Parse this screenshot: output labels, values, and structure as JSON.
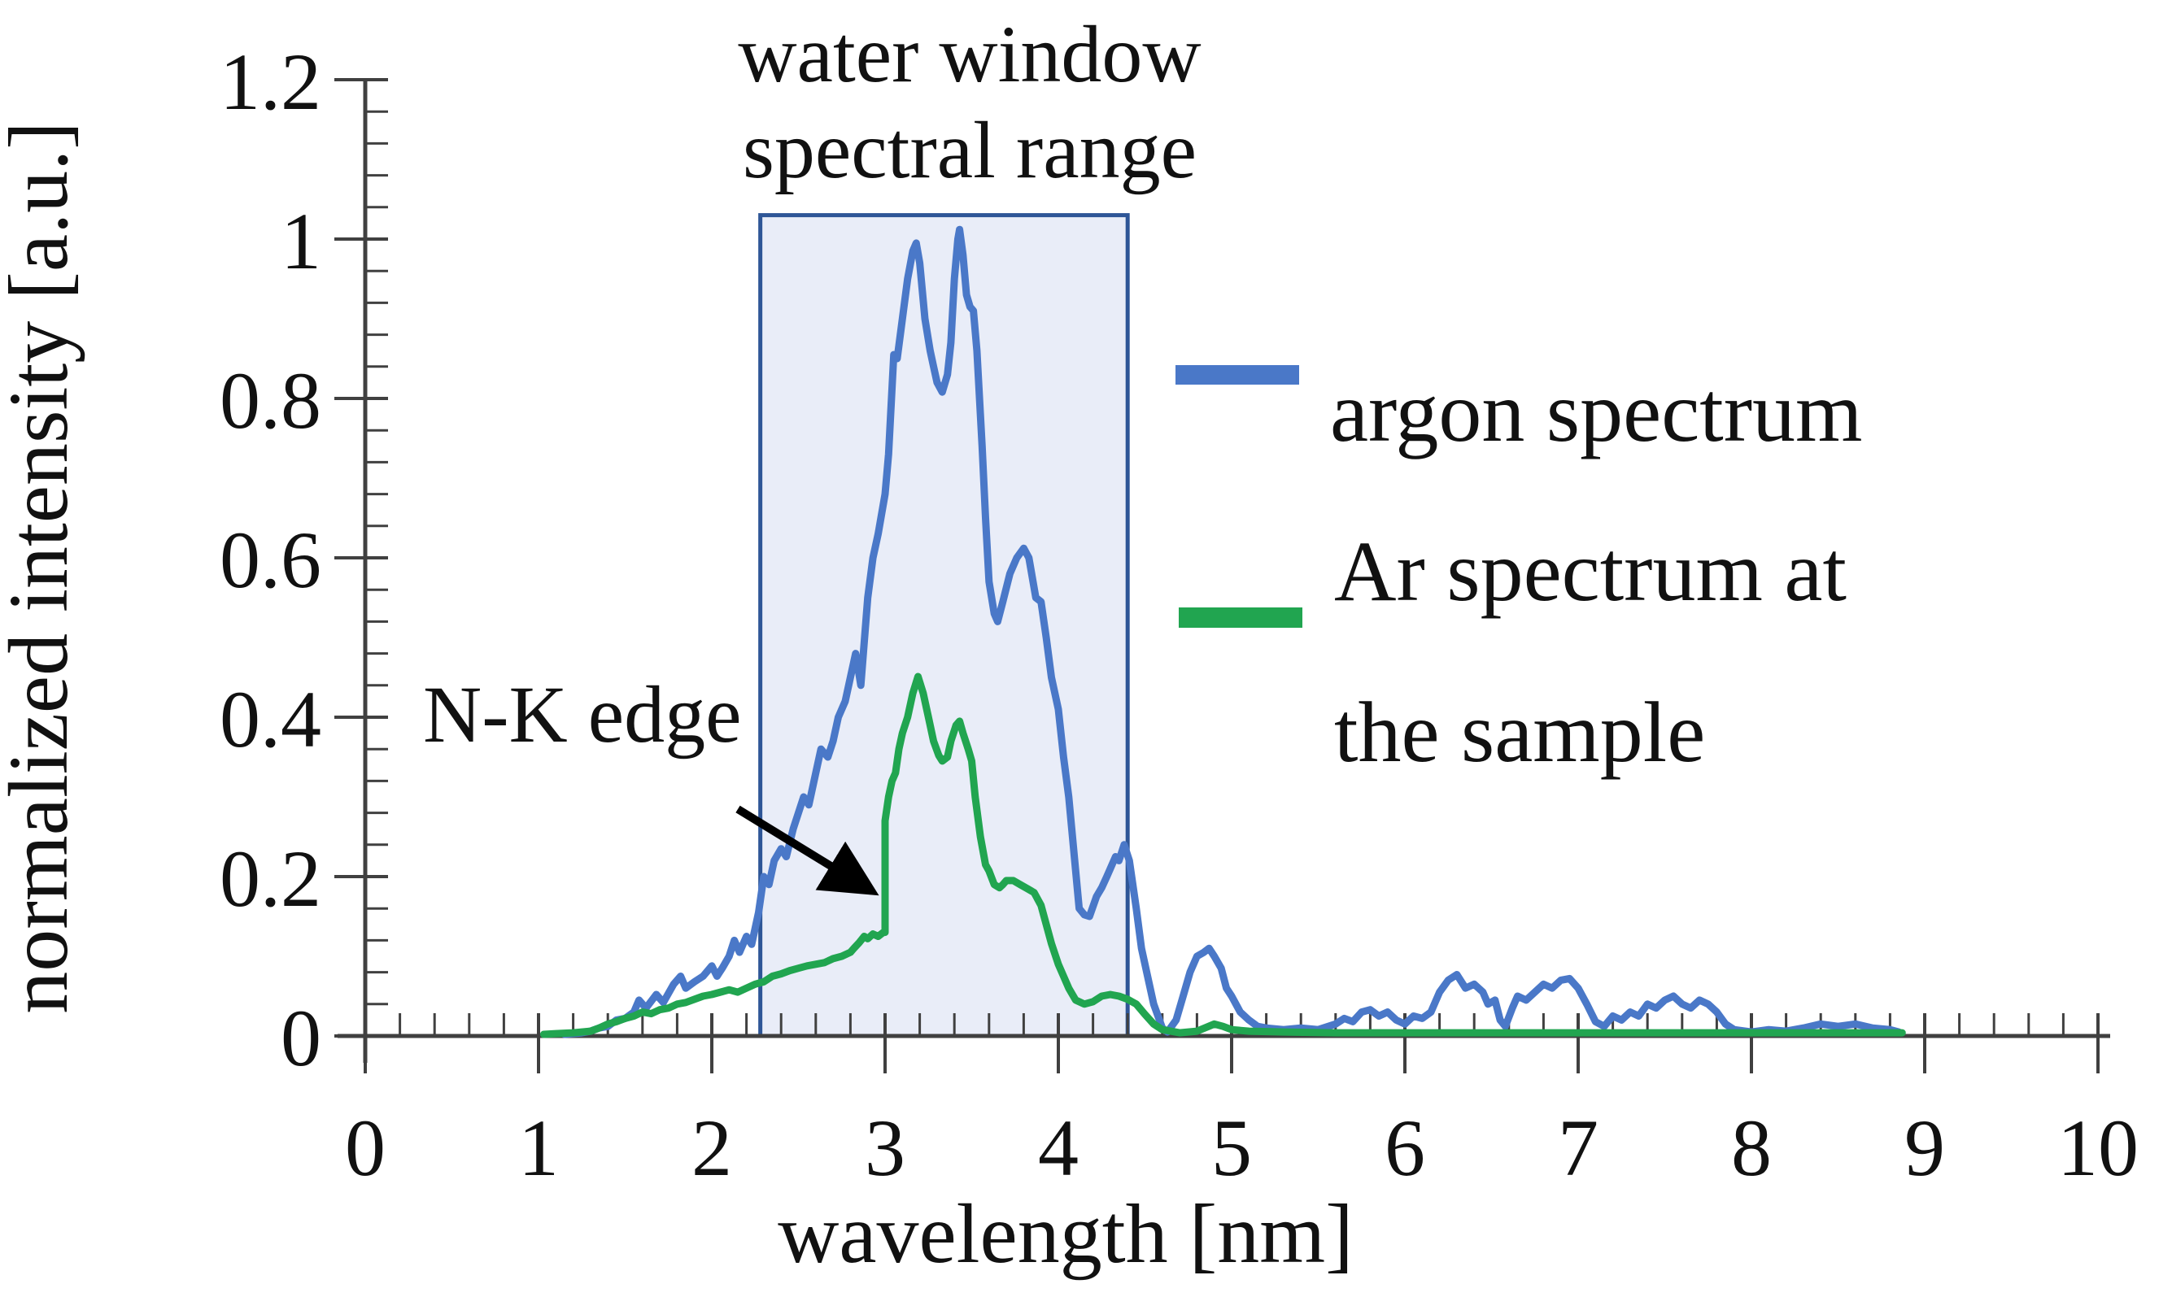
{
  "figure": {
    "title_line1": "water window",
    "title_line2": "spectral range",
    "annotation": "N-K edge",
    "xlabel": "wavelength [nm]",
    "ylabel": "normalized intensity [a.u.]"
  },
  "legend": {
    "series1_label": "argon spectrum",
    "series2_label_line1": "Ar spectrum at",
    "series2_label_line2": "the sample"
  },
  "colors": {
    "argon_line": "#4a78c8",
    "sample_line": "#21a550",
    "box_fill": "#e9edf8",
    "box_border": "#2e5697",
    "axis": "#404040",
    "text": "#111111",
    "arrow": "#000000"
  },
  "chart_data": {
    "type": "line",
    "title": "water window spectral range",
    "xlabel": "wavelength [nm]",
    "ylabel": "normalized intensity [a.u.]",
    "xlim": [
      0,
      10
    ],
    "ylim": [
      0,
      1.2
    ],
    "x_ticks": [
      0,
      1,
      2,
      3,
      4,
      5,
      6,
      7,
      8,
      9,
      10
    ],
    "y_ticks": [
      0,
      0.2,
      0.4,
      0.6,
      0.8,
      1,
      1.2
    ],
    "y_tick_labels": [
      "0",
      "0.2",
      "0.4",
      "0.6",
      "0.8",
      "1",
      "1.2"
    ],
    "x_minor_step": 0.2,
    "y_minor_step": 0.04,
    "grid": false,
    "legend_position": "right",
    "water_window_band": {
      "x_start_nm": 2.28,
      "x_end_nm": 4.4,
      "y_top": 1.03,
      "label": "water window spectral range"
    },
    "annotations": [
      {
        "text": "N-K edge",
        "points_to_nm": 3.0,
        "points_to_intensity": 0.18
      }
    ],
    "series": [
      {
        "name": "argon spectrum",
        "color": "#4a78c8",
        "points": [
          [
            1.15,
            0.002
          ],
          [
            1.25,
            0.004
          ],
          [
            1.3,
            0.006
          ],
          [
            1.35,
            0.01
          ],
          [
            1.4,
            0.012
          ],
          [
            1.45,
            0.02
          ],
          [
            1.5,
            0.022
          ],
          [
            1.55,
            0.03
          ],
          [
            1.58,
            0.045
          ],
          [
            1.62,
            0.035
          ],
          [
            1.68,
            0.052
          ],
          [
            1.72,
            0.042
          ],
          [
            1.78,
            0.065
          ],
          [
            1.82,
            0.075
          ],
          [
            1.85,
            0.06
          ],
          [
            1.9,
            0.068
          ],
          [
            1.95,
            0.075
          ],
          [
            2.0,
            0.088
          ],
          [
            2.03,
            0.075
          ],
          [
            2.06,
            0.085
          ],
          [
            2.1,
            0.1
          ],
          [
            2.13,
            0.12
          ],
          [
            2.16,
            0.105
          ],
          [
            2.2,
            0.125
          ],
          [
            2.23,
            0.115
          ],
          [
            2.27,
            0.155
          ],
          [
            2.3,
            0.2
          ],
          [
            2.33,
            0.19
          ],
          [
            2.36,
            0.22
          ],
          [
            2.4,
            0.235
          ],
          [
            2.43,
            0.225
          ],
          [
            2.47,
            0.26
          ],
          [
            2.5,
            0.28
          ],
          [
            2.53,
            0.3
          ],
          [
            2.56,
            0.29
          ],
          [
            2.6,
            0.33
          ],
          [
            2.63,
            0.36
          ],
          [
            2.67,
            0.35
          ],
          [
            2.7,
            0.37
          ],
          [
            2.73,
            0.4
          ],
          [
            2.77,
            0.42
          ],
          [
            2.8,
            0.45
          ],
          [
            2.83,
            0.48
          ],
          [
            2.86,
            0.44
          ],
          [
            2.9,
            0.55
          ],
          [
            2.93,
            0.6
          ],
          [
            2.96,
            0.63
          ],
          [
            3.0,
            0.68
          ],
          [
            3.02,
            0.73
          ],
          [
            3.05,
            0.855
          ],
          [
            3.07,
            0.85
          ],
          [
            3.1,
            0.9
          ],
          [
            3.13,
            0.95
          ],
          [
            3.16,
            0.985
          ],
          [
            3.18,
            0.995
          ],
          [
            3.2,
            0.97
          ],
          [
            3.23,
            0.9
          ],
          [
            3.26,
            0.86
          ],
          [
            3.28,
            0.84
          ],
          [
            3.3,
            0.82
          ],
          [
            3.33,
            0.808
          ],
          [
            3.36,
            0.83
          ],
          [
            3.38,
            0.87
          ],
          [
            3.4,
            0.95
          ],
          [
            3.42,
            1.0
          ],
          [
            3.43,
            1.012
          ],
          [
            3.45,
            0.98
          ],
          [
            3.47,
            0.93
          ],
          [
            3.49,
            0.915
          ],
          [
            3.51,
            0.91
          ],
          [
            3.53,
            0.86
          ],
          [
            3.56,
            0.74
          ],
          [
            3.58,
            0.65
          ],
          [
            3.6,
            0.57
          ],
          [
            3.63,
            0.53
          ],
          [
            3.65,
            0.52
          ],
          [
            3.68,
            0.545
          ],
          [
            3.72,
            0.58
          ],
          [
            3.76,
            0.6
          ],
          [
            3.8,
            0.612
          ],
          [
            3.83,
            0.6
          ],
          [
            3.87,
            0.55
          ],
          [
            3.9,
            0.545
          ],
          [
            3.93,
            0.5
          ],
          [
            3.96,
            0.45
          ],
          [
            4.0,
            0.41
          ],
          [
            4.03,
            0.35
          ],
          [
            4.06,
            0.3
          ],
          [
            4.09,
            0.23
          ],
          [
            4.12,
            0.16
          ],
          [
            4.15,
            0.152
          ],
          [
            4.18,
            0.15
          ],
          [
            4.22,
            0.175
          ],
          [
            4.25,
            0.186
          ],
          [
            4.28,
            0.2
          ],
          [
            4.3,
            0.21
          ],
          [
            4.33,
            0.225
          ],
          [
            4.35,
            0.22
          ],
          [
            4.38,
            0.24
          ],
          [
            4.41,
            0.22
          ],
          [
            4.45,
            0.16
          ],
          [
            4.48,
            0.11
          ],
          [
            4.51,
            0.08
          ],
          [
            4.55,
            0.04
          ],
          [
            4.6,
            0.01
          ],
          [
            4.63,
            0.005
          ],
          [
            4.68,
            0.02
          ],
          [
            4.72,
            0.05
          ],
          [
            4.76,
            0.08
          ],
          [
            4.8,
            0.1
          ],
          [
            4.84,
            0.105
          ],
          [
            4.87,
            0.11
          ],
          [
            4.9,
            0.1
          ],
          [
            4.94,
            0.085
          ],
          [
            4.97,
            0.06
          ],
          [
            5.0,
            0.05
          ],
          [
            5.05,
            0.03
          ],
          [
            5.1,
            0.02
          ],
          [
            5.15,
            0.012
          ],
          [
            5.2,
            0.01
          ],
          [
            5.3,
            0.008
          ],
          [
            5.4,
            0.01
          ],
          [
            5.5,
            0.008
          ],
          [
            5.6,
            0.015
          ],
          [
            5.65,
            0.022
          ],
          [
            5.7,
            0.018
          ],
          [
            5.75,
            0.03
          ],
          [
            5.8,
            0.033
          ],
          [
            5.85,
            0.025
          ],
          [
            5.9,
            0.03
          ],
          [
            5.95,
            0.02
          ],
          [
            6.0,
            0.015
          ],
          [
            6.05,
            0.025
          ],
          [
            6.1,
            0.022
          ],
          [
            6.15,
            0.03
          ],
          [
            6.2,
            0.055
          ],
          [
            6.25,
            0.07
          ],
          [
            6.3,
            0.077
          ],
          [
            6.35,
            0.06
          ],
          [
            6.4,
            0.065
          ],
          [
            6.45,
            0.055
          ],
          [
            6.48,
            0.04
          ],
          [
            6.52,
            0.045
          ],
          [
            6.55,
            0.02
          ],
          [
            6.58,
            0.012
          ],
          [
            6.62,
            0.035
          ],
          [
            6.65,
            0.05
          ],
          [
            6.7,
            0.045
          ],
          [
            6.75,
            0.055
          ],
          [
            6.8,
            0.065
          ],
          [
            6.85,
            0.06
          ],
          [
            6.9,
            0.07
          ],
          [
            6.95,
            0.072
          ],
          [
            7.0,
            0.06
          ],
          [
            7.05,
            0.04
          ],
          [
            7.1,
            0.018
          ],
          [
            7.15,
            0.012
          ],
          [
            7.2,
            0.025
          ],
          [
            7.25,
            0.02
          ],
          [
            7.3,
            0.03
          ],
          [
            7.35,
            0.025
          ],
          [
            7.4,
            0.04
          ],
          [
            7.45,
            0.035
          ],
          [
            7.5,
            0.045
          ],
          [
            7.55,
            0.05
          ],
          [
            7.6,
            0.04
          ],
          [
            7.65,
            0.035
          ],
          [
            7.7,
            0.045
          ],
          [
            7.75,
            0.04
          ],
          [
            7.8,
            0.03
          ],
          [
            7.85,
            0.015
          ],
          [
            7.9,
            0.008
          ],
          [
            8.0,
            0.005
          ],
          [
            8.1,
            0.008
          ],
          [
            8.2,
            0.006
          ],
          [
            8.3,
            0.01
          ],
          [
            8.4,
            0.015
          ],
          [
            8.5,
            0.012
          ],
          [
            8.6,
            0.015
          ],
          [
            8.7,
            0.01
          ],
          [
            8.8,
            0.008
          ],
          [
            8.85,
            0.005
          ]
        ]
      },
      {
        "name": "Ar spectrum at the sample",
        "color": "#21a550",
        "points": [
          [
            1.03,
            0.002
          ],
          [
            1.1,
            0.003
          ],
          [
            1.2,
            0.004
          ],
          [
            1.3,
            0.006
          ],
          [
            1.35,
            0.01
          ],
          [
            1.4,
            0.015
          ],
          [
            1.45,
            0.018
          ],
          [
            1.5,
            0.022
          ],
          [
            1.55,
            0.025
          ],
          [
            1.6,
            0.03
          ],
          [
            1.65,
            0.028
          ],
          [
            1.7,
            0.033
          ],
          [
            1.75,
            0.035
          ],
          [
            1.8,
            0.04
          ],
          [
            1.85,
            0.042
          ],
          [
            1.9,
            0.046
          ],
          [
            1.95,
            0.05
          ],
          [
            2.0,
            0.052
          ],
          [
            2.05,
            0.055
          ],
          [
            2.1,
            0.058
          ],
          [
            2.15,
            0.055
          ],
          [
            2.2,
            0.06
          ],
          [
            2.25,
            0.065
          ],
          [
            2.3,
            0.068
          ],
          [
            2.35,
            0.075
          ],
          [
            2.4,
            0.078
          ],
          [
            2.45,
            0.082
          ],
          [
            2.5,
            0.085
          ],
          [
            2.55,
            0.088
          ],
          [
            2.6,
            0.09
          ],
          [
            2.65,
            0.092
          ],
          [
            2.7,
            0.097
          ],
          [
            2.75,
            0.1
          ],
          [
            2.8,
            0.105
          ],
          [
            2.82,
            0.11
          ],
          [
            2.85,
            0.117
          ],
          [
            2.88,
            0.125
          ],
          [
            2.9,
            0.122
          ],
          [
            2.93,
            0.128
          ],
          [
            2.96,
            0.125
          ],
          [
            2.99,
            0.13
          ],
          [
            3.0,
            0.13
          ],
          [
            3.0,
            0.27
          ],
          [
            3.02,
            0.3
          ],
          [
            3.04,
            0.32
          ],
          [
            3.06,
            0.33
          ],
          [
            3.08,
            0.36
          ],
          [
            3.1,
            0.38
          ],
          [
            3.13,
            0.4
          ],
          [
            3.16,
            0.43
          ],
          [
            3.19,
            0.451
          ],
          [
            3.22,
            0.43
          ],
          [
            3.25,
            0.4
          ],
          [
            3.28,
            0.37
          ],
          [
            3.31,
            0.352
          ],
          [
            3.33,
            0.345
          ],
          [
            3.36,
            0.35
          ],
          [
            3.38,
            0.37
          ],
          [
            3.41,
            0.39
          ],
          [
            3.43,
            0.395
          ],
          [
            3.45,
            0.38
          ],
          [
            3.48,
            0.36
          ],
          [
            3.5,
            0.345
          ],
          [
            3.52,
            0.3
          ],
          [
            3.55,
            0.25
          ],
          [
            3.58,
            0.215
          ],
          [
            3.6,
            0.207
          ],
          [
            3.63,
            0.19
          ],
          [
            3.66,
            0.186
          ],
          [
            3.68,
            0.19
          ],
          [
            3.7,
            0.195
          ],
          [
            3.74,
            0.195
          ],
          [
            3.78,
            0.19
          ],
          [
            3.82,
            0.185
          ],
          [
            3.86,
            0.18
          ],
          [
            3.9,
            0.164
          ],
          [
            3.93,
            0.14
          ],
          [
            3.96,
            0.116
          ],
          [
            4.0,
            0.09
          ],
          [
            4.03,
            0.075
          ],
          [
            4.06,
            0.06
          ],
          [
            4.1,
            0.045
          ],
          [
            4.15,
            0.04
          ],
          [
            4.2,
            0.043
          ],
          [
            4.25,
            0.05
          ],
          [
            4.3,
            0.052
          ],
          [
            4.35,
            0.05
          ],
          [
            4.4,
            0.046
          ],
          [
            4.45,
            0.04
          ],
          [
            4.5,
            0.027
          ],
          [
            4.55,
            0.015
          ],
          [
            4.6,
            0.008
          ],
          [
            4.7,
            0.004
          ],
          [
            4.8,
            0.006
          ],
          [
            4.9,
            0.015
          ],
          [
            4.95,
            0.012
          ],
          [
            5.0,
            0.008
          ],
          [
            5.1,
            0.006
          ],
          [
            5.3,
            0.005
          ],
          [
            5.6,
            0.004
          ],
          [
            6.0,
            0.004
          ],
          [
            6.5,
            0.004
          ],
          [
            7.0,
            0.004
          ],
          [
            7.5,
            0.004
          ],
          [
            8.0,
            0.004
          ],
          [
            8.5,
            0.004
          ],
          [
            8.87,
            0.004
          ]
        ]
      }
    ]
  }
}
